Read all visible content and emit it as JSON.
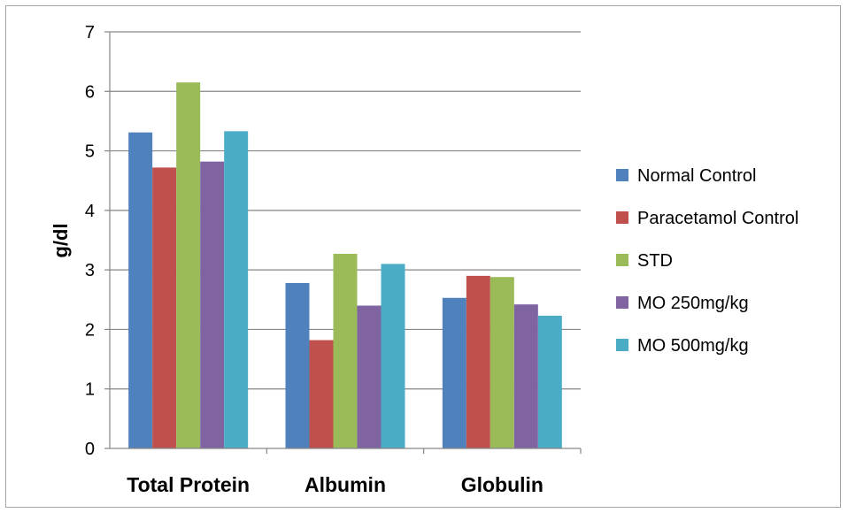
{
  "chart_data": {
    "type": "bar",
    "title": "",
    "xlabel": "",
    "ylabel": "g/dl",
    "ylim": [
      0,
      7
    ],
    "yticks": [
      0,
      1,
      2,
      3,
      4,
      5,
      6,
      7
    ],
    "grid": true,
    "legend_position": "right",
    "categories": [
      "Total Protein",
      "Albumin",
      "Globulin"
    ],
    "series": [
      {
        "name": "Normal Control",
        "color": "#4f81bd",
        "values": [
          5.31,
          2.78,
          2.53
        ]
      },
      {
        "name": "Paracetamol Control",
        "color": "#c0504d",
        "values": [
          4.72,
          1.82,
          2.9
        ]
      },
      {
        "name": "STD",
        "color": "#9bbb59",
        "values": [
          6.15,
          3.27,
          2.88
        ]
      },
      {
        "name": "MO 250mg/kg",
        "color": "#8064a2",
        "values": [
          4.82,
          2.4,
          2.42
        ]
      },
      {
        "name": "MO 500mg/kg",
        "color": "#4bacc6",
        "values": [
          5.33,
          3.1,
          2.23
        ]
      }
    ]
  }
}
